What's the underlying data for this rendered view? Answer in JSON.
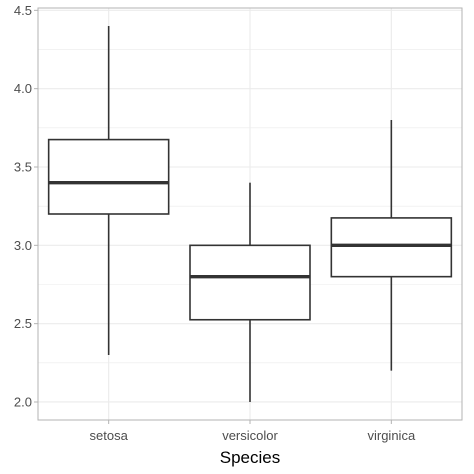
{
  "chart_data": {
    "type": "box",
    "xlabel": "Species",
    "ylabel": "",
    "ylim": [
      1.885,
      4.515
    ],
    "y_ticks": [
      2.0,
      2.5,
      3.0,
      3.5,
      4.0,
      4.5
    ],
    "y_tick_labels": [
      "2.0",
      "2.5",
      "3.0",
      "3.5",
      "4.0",
      "4.5"
    ],
    "categories": [
      "setosa",
      "versicolor",
      "virginica"
    ],
    "boxes": [
      {
        "category": "setosa",
        "whisker_low": 2.3,
        "q1": 3.2,
        "median": 3.4,
        "q3": 3.675,
        "whisker_high": 4.4
      },
      {
        "category": "versicolor",
        "whisker_low": 2.0,
        "q1": 2.525,
        "median": 2.8,
        "q3": 3.0,
        "whisker_high": 3.4
      },
      {
        "category": "virginica",
        "whisker_low": 2.2,
        "q1": 2.8,
        "median": 3.0,
        "q3": 3.175,
        "whisker_high": 3.8
      }
    ],
    "grid": true,
    "legend": "none",
    "colors": {
      "box_stroke": "#333333",
      "box_fill": "#ffffff",
      "grid": "#ebebeb",
      "panel_border": "#b3b3b3"
    }
  }
}
